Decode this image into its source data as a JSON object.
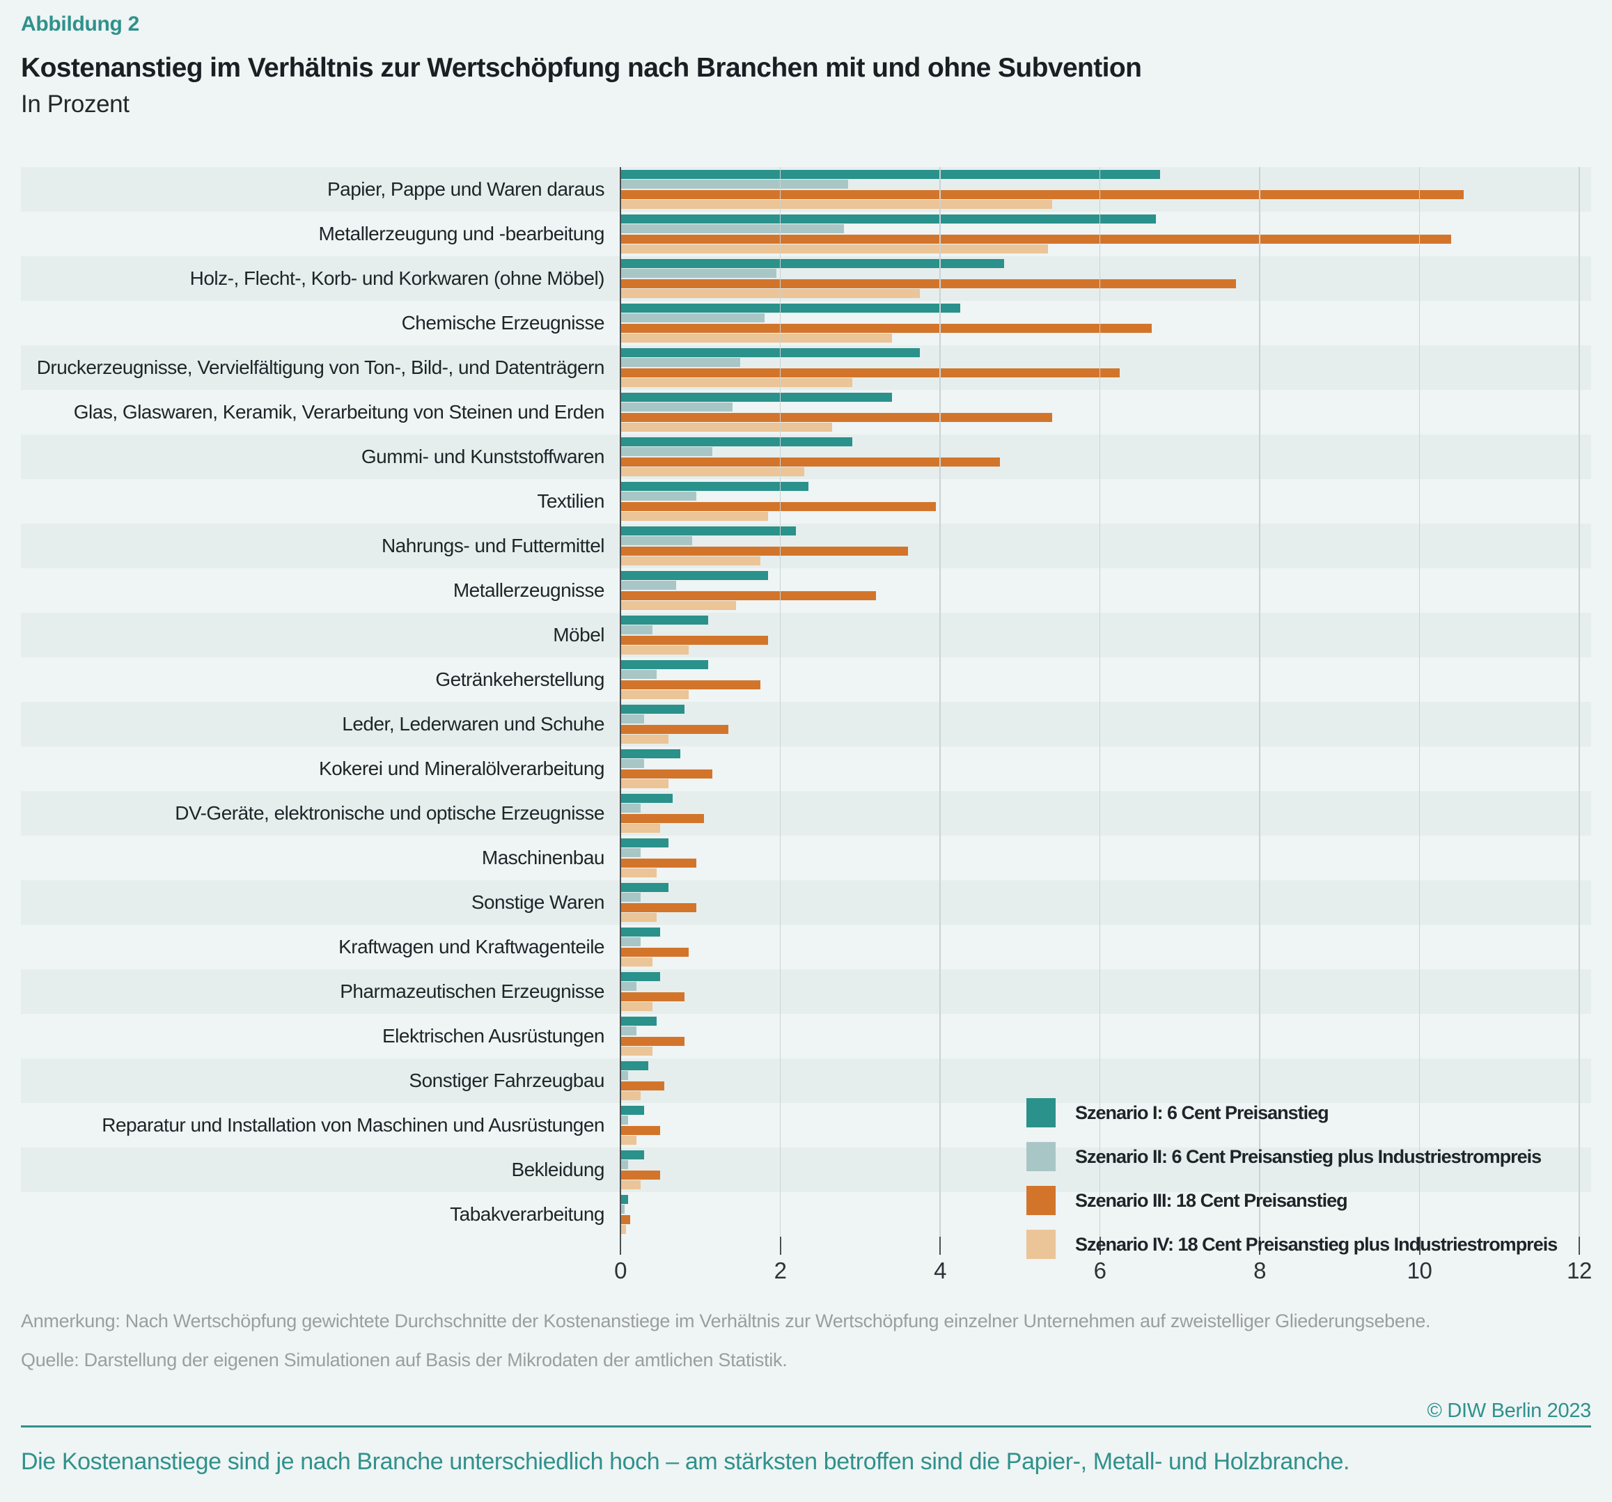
{
  "header": {
    "figure_label": "Abbildung 2",
    "title": "Kostenanstieg im Verhältnis zur Wertschöpfung nach Branchen mit und ohne Subvention",
    "subtitle": "In Prozent"
  },
  "colors": {
    "background": "#eff4f4",
    "row_stripe": "#e6eeed",
    "gridline": "#cbd2d3",
    "axis": "#4a4f52",
    "accent_teal": "#2e918c",
    "note_gray": "#999ea1",
    "szenario1": "#2a918b",
    "szenario2": "#a9c6c6",
    "szenario3": "#d2752b",
    "szenario4": "#ebc497"
  },
  "chart_data": {
    "type": "bar",
    "orientation": "horizontal",
    "title": "Kostenanstieg im Verhältnis zur Wertschöpfung nach Branchen mit und ohne Subvention",
    "subtitle": "In Prozent",
    "xlabel": "",
    "ylabel": "",
    "xlim": [
      0,
      12
    ],
    "xticks": [
      0,
      2,
      4,
      6,
      8,
      10,
      12
    ],
    "grid": true,
    "legend_position": "bottom-right",
    "categories": [
      "Papier, Pappe und Waren daraus",
      "Metallerzeugung und -bearbeitung",
      "Holz-, Flecht-, Korb- und Korkwaren (ohne Möbel)",
      "Chemische Erzeugnisse",
      "Druckerzeugnisse, Vervielfältigung von Ton-, Bild-, und Datenträgern",
      "Glas, Glaswaren, Keramik, Verarbeitung von Steinen und Erden",
      "Gummi- und Kunststoffwaren",
      "Textilien",
      "Nahrungs- und Futtermittel",
      "Metallerzeugnisse",
      "Möbel",
      "Getränkeherstellung",
      "Leder, Lederwaren und Schuhe",
      "Kokerei und Mineralölverarbeitung",
      "DV-Geräte, elektronische und optische Erzeugnisse",
      "Maschinenbau",
      "Sonstige Waren",
      "Kraftwagen und Kraftwagenteile",
      "Pharmazeutischen Erzeugnisse",
      "Elektrischen Ausrüstungen",
      "Sonstiger Fahrzeugbau",
      "Reparatur und Installation von Maschinen und Ausrüstungen",
      "Bekleidung",
      "Tabakverarbeitung"
    ],
    "series": [
      {
        "name": "Szenario I: 6 Cent Preisanstieg",
        "color": "#2a918b",
        "values": [
          6.75,
          6.7,
          4.8,
          4.25,
          3.75,
          3.4,
          2.9,
          2.35,
          2.2,
          1.85,
          1.1,
          1.1,
          0.8,
          0.75,
          0.65,
          0.6,
          0.6,
          0.5,
          0.5,
          0.45,
          0.35,
          0.3,
          0.3,
          0.1
        ]
      },
      {
        "name": "Szenario II: 6 Cent Preisanstieg plus Industriestrompreis",
        "color": "#a9c6c6",
        "values": [
          2.85,
          2.8,
          1.95,
          1.8,
          1.5,
          1.4,
          1.15,
          0.95,
          0.9,
          0.7,
          0.4,
          0.45,
          0.3,
          0.3,
          0.25,
          0.25,
          0.25,
          0.25,
          0.2,
          0.2,
          0.1,
          0.1,
          0.1,
          0.05
        ]
      },
      {
        "name": "Szenario III: 18 Cent Preisanstieg",
        "color": "#d2752b",
        "values": [
          10.55,
          10.4,
          7.7,
          6.65,
          6.25,
          5.4,
          4.75,
          3.95,
          3.6,
          3.2,
          1.85,
          1.75,
          1.35,
          1.15,
          1.05,
          0.95,
          0.95,
          0.85,
          0.8,
          0.8,
          0.55,
          0.5,
          0.5,
          0.12
        ]
      },
      {
        "name": "Szenario IV: 18 Cent Preisanstieg plus Industriestrompreis",
        "color": "#ebc497",
        "values": [
          5.4,
          5.35,
          3.75,
          3.4,
          2.9,
          2.65,
          2.3,
          1.85,
          1.75,
          1.45,
          0.85,
          0.85,
          0.6,
          0.6,
          0.5,
          0.45,
          0.45,
          0.4,
          0.4,
          0.4,
          0.25,
          0.2,
          0.25,
          0.07
        ]
      }
    ]
  },
  "notes": {
    "anmerkung": "Anmerkung: Nach Wertschöpfung gewichtete Durchschnitte der Kostenanstiege im Verhältnis zur Wertschöpfung einzelner Unternehmen auf zweistelliger Gliederungsebene.",
    "quelle": "Quelle: Darstellung der eigenen Simulationen auf Basis der Mikrodaten der amtlichen Statistik."
  },
  "footer": {
    "copyright": "© DIW Berlin 2023",
    "summary": "Die Kostenanstiege sind je nach Branche unterschiedlich hoch – am stärksten betroffen sind die Papier-, Metall- und Holzbranche."
  }
}
